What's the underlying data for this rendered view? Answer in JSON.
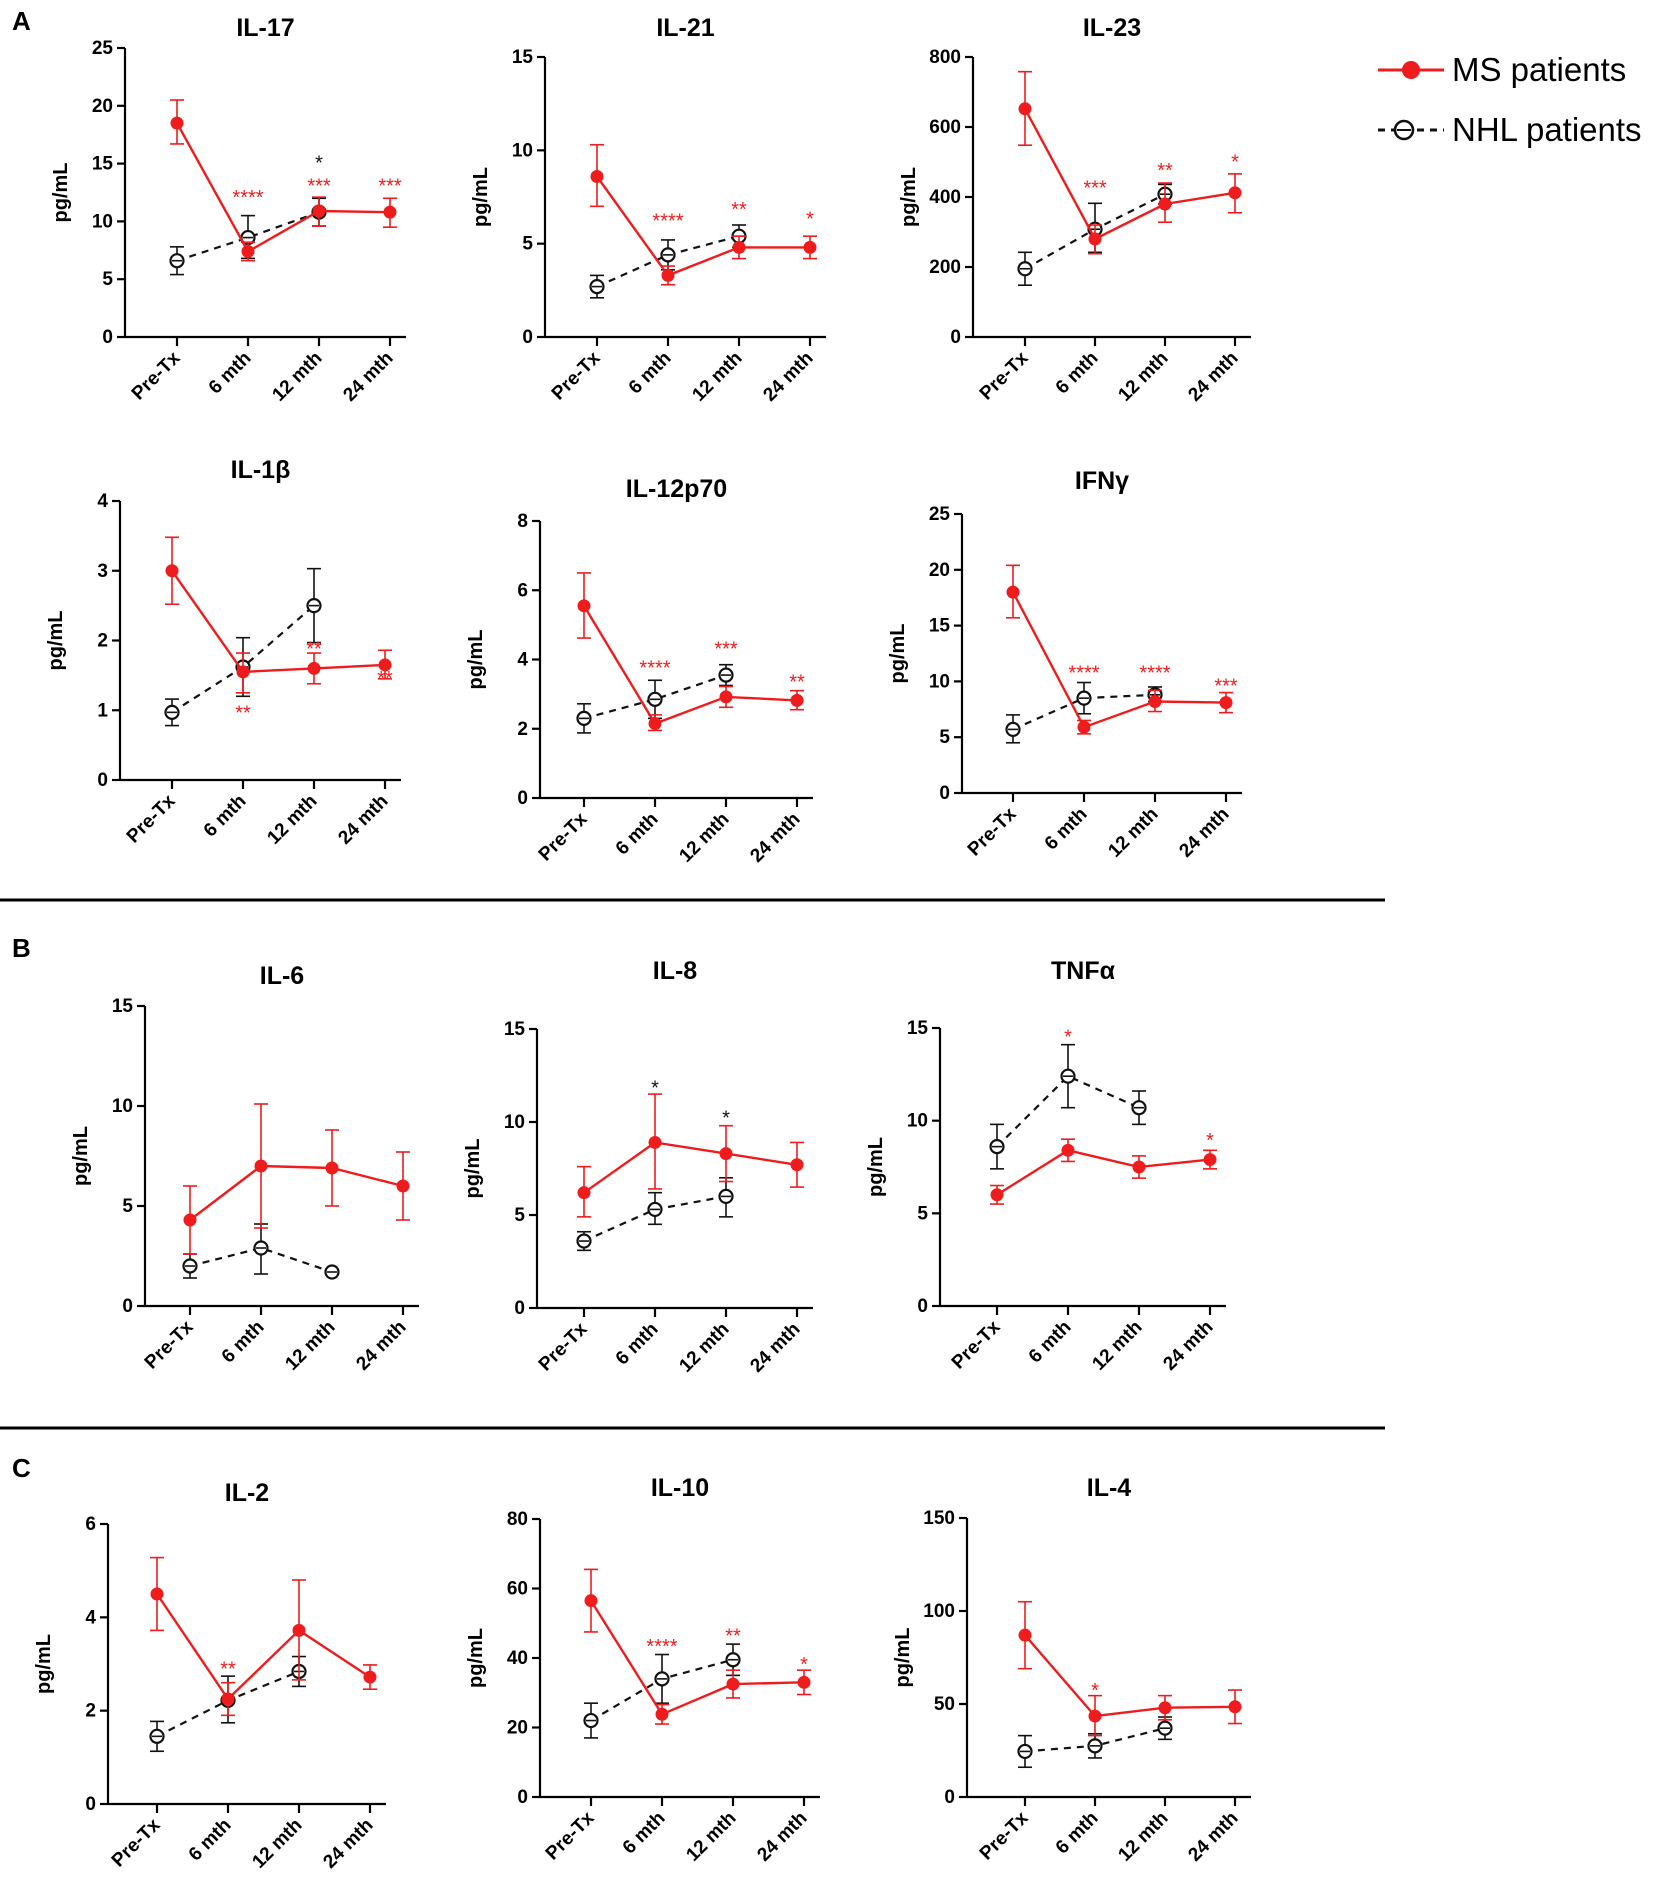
{
  "panels": [
    {
      "letter": "A",
      "charts": [
        0,
        1,
        2,
        3,
        4,
        5
      ]
    },
    {
      "letter": "B",
      "charts": [
        6,
        7,
        8
      ]
    },
    {
      "letter": "C",
      "charts": [
        9,
        10,
        11
      ]
    }
  ],
  "legend": {
    "ms_label": "MS patients",
    "nhl_label": "NHL patients"
  },
  "colors": {
    "ms": "#ee1c1c",
    "nhl": "#111111",
    "axis": "#000000",
    "divider": "#000000"
  },
  "chart_data": [
    {
      "type": "line",
      "title": "IL-17",
      "ylabel": "pg/mL",
      "categories": [
        "Pre-Tx",
        "6 mth",
        "12 mth",
        "24 mth"
      ],
      "ylim": [
        0,
        25
      ],
      "yticks": [
        0,
        5,
        10,
        15,
        20,
        25
      ],
      "series": [
        {
          "name": "MS patients",
          "values": [
            18.5,
            7.4,
            10.9,
            10.8
          ],
          "err_low": [
            16.7,
            6.6,
            9.6,
            9.5
          ],
          "err_high": [
            20.5,
            8.2,
            12.1,
            12.0
          ]
        },
        {
          "name": "NHL patients",
          "values": [
            6.6,
            8.6,
            10.8,
            null
          ],
          "err_low": [
            5.4,
            6.8,
            9.6,
            null
          ],
          "err_high": [
            7.8,
            10.5,
            12.0,
            null
          ]
        }
      ],
      "annotations": [
        {
          "category": "6 mth",
          "text": "****",
          "series": "MS patients",
          "value": 12.2
        },
        {
          "category": "12 mth",
          "text": "***",
          "series": "MS patients",
          "value": 13.2
        },
        {
          "category": "12 mth",
          "text": "*",
          "series": "NHL patients",
          "value": 15.2
        },
        {
          "category": "24 mth",
          "text": "***",
          "series": "MS patients",
          "value": 13.2
        }
      ]
    },
    {
      "type": "line",
      "title": "IL-21",
      "ylabel": "pg/mL",
      "categories": [
        "Pre-Tx",
        "6 mth",
        "12 mth",
        "24 mth"
      ],
      "ylim": [
        0,
        15
      ],
      "yticks": [
        0,
        5,
        10,
        15
      ],
      "series": [
        {
          "name": "MS patients",
          "values": [
            8.6,
            3.3,
            4.8,
            4.8
          ],
          "err_low": [
            7.0,
            2.8,
            4.2,
            4.2
          ],
          "err_high": [
            10.3,
            3.8,
            5.4,
            5.4
          ]
        },
        {
          "name": "NHL patients",
          "values": [
            2.7,
            4.4,
            5.4,
            null
          ],
          "err_low": [
            2.1,
            3.6,
            4.8,
            null
          ],
          "err_high": [
            3.3,
            5.2,
            6.0,
            null
          ]
        }
      ],
      "annotations": [
        {
          "category": "6 mth",
          "text": "****",
          "series": "MS patients",
          "value": 6.3
        },
        {
          "category": "12 mth",
          "text": "**",
          "series": "MS patients",
          "value": 6.9
        },
        {
          "category": "24 mth",
          "text": "*",
          "series": "MS patients",
          "value": 6.4
        }
      ]
    },
    {
      "type": "line",
      "title": "IL-23",
      "ylabel": "pg/mL",
      "categories": [
        "Pre-Tx",
        "6 mth",
        "12 mth",
        "24 mth"
      ],
      "ylim": [
        0,
        800
      ],
      "yticks": [
        0,
        200,
        400,
        600,
        800
      ],
      "series": [
        {
          "name": "MS patients",
          "values": [
            652,
            280,
            380,
            412
          ],
          "err_low": [
            548,
            238,
            328,
            355
          ],
          "err_high": [
            758,
            320,
            440,
            466
          ]
        },
        {
          "name": "NHL patients",
          "values": [
            195,
            308,
            408,
            null
          ],
          "err_low": [
            148,
            242,
            380,
            null
          ],
          "err_high": [
            242,
            382,
            436,
            null
          ]
        }
      ],
      "annotations": [
        {
          "category": "6 mth",
          "text": "***",
          "series": "MS patients",
          "value": 430
        },
        {
          "category": "12 mth",
          "text": "**",
          "series": "MS patients",
          "value": 480
        },
        {
          "category": "24 mth",
          "text": "*",
          "series": "MS patients",
          "value": 505
        }
      ]
    },
    {
      "type": "line",
      "title": "IL-1β",
      "ylabel": "pg/mL",
      "categories": [
        "Pre-Tx",
        "6 mth",
        "12 mth",
        "24 mth"
      ],
      "ylim": [
        0,
        4
      ],
      "yticks": [
        0,
        1,
        2,
        3,
        4
      ],
      "series": [
        {
          "name": "MS patients",
          "values": [
            3.0,
            1.55,
            1.6,
            1.65
          ],
          "err_low": [
            2.52,
            1.25,
            1.38,
            1.45
          ],
          "err_high": [
            3.48,
            1.82,
            1.82,
            1.86
          ]
        },
        {
          "name": "NHL patients",
          "values": [
            0.97,
            1.62,
            2.5,
            null
          ],
          "err_low": [
            0.78,
            1.2,
            1.97,
            null
          ],
          "err_high": [
            1.16,
            2.04,
            3.03,
            null
          ]
        }
      ],
      "annotations": [
        {
          "category": "6 mth",
          "text": "**",
          "series": "MS patients",
          "value": 0.98
        },
        {
          "category": "12 mth",
          "text": "**",
          "series": "MS patients",
          "value": 1.9
        },
        {
          "category": "24 mth",
          "text": "**",
          "series": "MS patients",
          "value": 1.48
        }
      ]
    },
    {
      "type": "line",
      "title": "IL-12p70",
      "ylabel": "pg/mL",
      "categories": [
        "Pre-Tx",
        "6 mth",
        "12 mth",
        "24 mth"
      ],
      "ylim": [
        0,
        8
      ],
      "yticks": [
        0,
        2,
        4,
        6,
        8
      ],
      "series": [
        {
          "name": "MS patients",
          "values": [
            5.55,
            2.15,
            2.92,
            2.82
          ],
          "err_low": [
            4.62,
            1.95,
            2.62,
            2.55
          ],
          "err_high": [
            6.5,
            2.4,
            3.22,
            3.1
          ]
        },
        {
          "name": "NHL patients",
          "values": [
            2.3,
            2.85,
            3.55,
            null
          ],
          "err_low": [
            1.88,
            2.3,
            3.25,
            null
          ],
          "err_high": [
            2.72,
            3.4,
            3.85,
            null
          ]
        }
      ],
      "annotations": [
        {
          "category": "6 mth",
          "text": "****",
          "series": "MS patients",
          "value": 3.8
        },
        {
          "category": "12 mth",
          "text": "***",
          "series": "MS patients",
          "value": 4.35
        },
        {
          "category": "24 mth",
          "text": "**",
          "series": "MS patients",
          "value": 3.4
        }
      ]
    },
    {
      "type": "line",
      "title": "IFNγ",
      "ylabel": "pg/mL",
      "categories": [
        "Pre-Tx",
        "6 mth",
        "12 mth",
        "24 mth"
      ],
      "ylim": [
        0,
        25
      ],
      "yticks": [
        0,
        5,
        10,
        15,
        20,
        25
      ],
      "series": [
        {
          "name": "MS patients",
          "values": [
            18.0,
            5.9,
            8.2,
            8.1
          ],
          "err_low": [
            15.7,
            5.3,
            7.3,
            7.2
          ],
          "err_high": [
            20.4,
            6.5,
            9.2,
            9.0
          ]
        },
        {
          "name": "NHL patients",
          "values": [
            5.7,
            8.5,
            8.8,
            null
          ],
          "err_low": [
            4.5,
            7.1,
            8.2,
            null
          ],
          "err_high": [
            7.0,
            9.9,
            9.5,
            null
          ]
        }
      ],
      "annotations": [
        {
          "category": "6 mth",
          "text": "****",
          "series": "MS patients",
          "value": 10.9
        },
        {
          "category": "12 mth",
          "text": "****",
          "series": "MS patients",
          "value": 10.9
        },
        {
          "category": "24 mth",
          "text": "***",
          "series": "MS patients",
          "value": 9.7
        }
      ]
    },
    {
      "type": "line",
      "title": "IL-6",
      "ylabel": "pg/mL",
      "categories": [
        "Pre-Tx",
        "6 mth",
        "12 mth",
        "24 mth"
      ],
      "ylim": [
        0,
        15
      ],
      "yticks": [
        0,
        5,
        10,
        15
      ],
      "series": [
        {
          "name": "MS patients",
          "values": [
            4.3,
            7.0,
            6.9,
            6.0
          ],
          "err_low": [
            2.6,
            3.9,
            5.0,
            4.3
          ],
          "err_high": [
            6.0,
            10.1,
            8.8,
            7.7
          ]
        },
        {
          "name": "NHL patients",
          "values": [
            2.0,
            2.9,
            1.7,
            null
          ],
          "err_low": [
            1.4,
            1.6,
            null,
            null
          ],
          "err_high": [
            2.6,
            4.1,
            null,
            null
          ]
        }
      ],
      "annotations": []
    },
    {
      "type": "line",
      "title": "IL-8",
      "ylabel": "pg/mL",
      "categories": [
        "Pre-Tx",
        "6 mth",
        "12 mth",
        "24 mth"
      ],
      "ylim": [
        0,
        15
      ],
      "yticks": [
        0,
        5,
        10,
        15
      ],
      "series": [
        {
          "name": "MS patients",
          "values": [
            6.2,
            8.9,
            8.3,
            7.7
          ],
          "err_low": [
            4.9,
            6.4,
            6.8,
            6.5
          ],
          "err_high": [
            7.6,
            11.5,
            9.8,
            8.9
          ]
        },
        {
          "name": "NHL patients",
          "values": [
            3.6,
            5.3,
            6.0,
            null
          ],
          "err_low": [
            3.1,
            4.5,
            4.9,
            null
          ],
          "err_high": [
            4.1,
            6.2,
            7.0,
            null
          ]
        }
      ],
      "annotations": [
        {
          "category": "6 mth",
          "text": "*",
          "series": "NHL patients",
          "value": 11.9
        },
        {
          "category": "12 mth",
          "text": "*",
          "series": "NHL patients",
          "value": 10.3
        }
      ]
    },
    {
      "type": "line",
      "title": "TNFα",
      "ylabel": "pg/mL",
      "categories": [
        "Pre-Tx",
        "6 mth",
        "12 mth",
        "24 mth"
      ],
      "ylim": [
        0,
        15
      ],
      "yticks": [
        0,
        5,
        10,
        15
      ],
      "series": [
        {
          "name": "MS patients",
          "values": [
            6.0,
            8.4,
            7.5,
            7.9
          ],
          "err_low": [
            5.5,
            7.8,
            6.9,
            7.4
          ],
          "err_high": [
            6.5,
            9.0,
            8.1,
            8.4
          ]
        },
        {
          "name": "NHL patients",
          "values": [
            8.6,
            12.4,
            10.7,
            null
          ],
          "err_low": [
            7.4,
            10.7,
            9.8,
            null
          ],
          "err_high": [
            9.8,
            14.1,
            11.6,
            null
          ]
        }
      ],
      "annotations": [
        {
          "category": "6 mth",
          "text": "*",
          "series": "MS patients",
          "value": 14.6
        },
        {
          "category": "24 mth",
          "text": "*",
          "series": "MS patients",
          "value": 9.0
        }
      ]
    },
    {
      "type": "line",
      "title": "IL-2",
      "ylabel": "pg/mL",
      "categories": [
        "Pre-Tx",
        "6 mth",
        "12 mth",
        "24 mth"
      ],
      "ylim": [
        0,
        6
      ],
      "yticks": [
        0,
        2,
        4,
        6
      ],
      "series": [
        {
          "name": "MS patients",
          "values": [
            4.5,
            2.25,
            3.72,
            2.72
          ],
          "err_low": [
            3.72,
            1.9,
            2.66,
            2.46
          ],
          "err_high": [
            5.28,
            2.6,
            4.8,
            2.98
          ]
        },
        {
          "name": "NHL patients",
          "values": [
            1.45,
            2.22,
            2.84,
            null
          ],
          "err_low": [
            1.13,
            1.74,
            2.52,
            null
          ],
          "err_high": [
            1.77,
            2.74,
            3.16,
            null
          ]
        }
      ],
      "annotations": [
        {
          "category": "6 mth",
          "text": "**",
          "series": "MS patients",
          "value": 2.92
        }
      ]
    },
    {
      "type": "line",
      "title": "IL-10",
      "ylabel": "pg/mL",
      "categories": [
        "Pre-Tx",
        "6 mth",
        "12 mth",
        "24 mth"
      ],
      "ylim": [
        0,
        80
      ],
      "yticks": [
        0,
        20,
        40,
        60,
        80
      ],
      "series": [
        {
          "name": "MS patients",
          "values": [
            56.5,
            23.8,
            32.5,
            33.0
          ],
          "err_low": [
            47.5,
            21.0,
            28.5,
            29.5
          ],
          "err_high": [
            65.5,
            26.6,
            36.5,
            36.5
          ]
        },
        {
          "name": "NHL patients",
          "values": [
            22.0,
            34.0,
            39.5,
            null
          ],
          "err_low": [
            17.0,
            27.0,
            35.0,
            null
          ],
          "err_high": [
            27.0,
            41.0,
            44.0,
            null
          ]
        }
      ],
      "annotations": [
        {
          "category": "6 mth",
          "text": "****",
          "series": "MS patients",
          "value": 43.8
        },
        {
          "category": "12 mth",
          "text": "**",
          "series": "MS patients",
          "value": 46.8
        },
        {
          "category": "24 mth",
          "text": "*",
          "series": "MS patients",
          "value": 38.5
        }
      ]
    },
    {
      "type": "line",
      "title": "IL-4",
      "ylabel": "pg/mL",
      "categories": [
        "Pre-Tx",
        "6 mth",
        "12 mth",
        "24 mth"
      ],
      "ylim": [
        0,
        150
      ],
      "yticks": [
        0,
        50,
        100,
        150
      ],
      "series": [
        {
          "name": "MS patients",
          "values": [
            87.0,
            43.5,
            48.0,
            48.5
          ],
          "err_low": [
            69.0,
            33.0,
            41.5,
            39.5
          ],
          "err_high": [
            105.0,
            54.5,
            54.5,
            57.5
          ]
        },
        {
          "name": "NHL patients",
          "values": [
            24.5,
            27.5,
            37.0,
            null
          ],
          "err_low": [
            16.0,
            21.0,
            31.0,
            null
          ],
          "err_high": [
            33.0,
            34.0,
            43.0,
            null
          ]
        }
      ],
      "annotations": [
        {
          "category": "6 mth",
          "text": "*",
          "series": "MS patients",
          "value": 58.0
        }
      ]
    }
  ]
}
